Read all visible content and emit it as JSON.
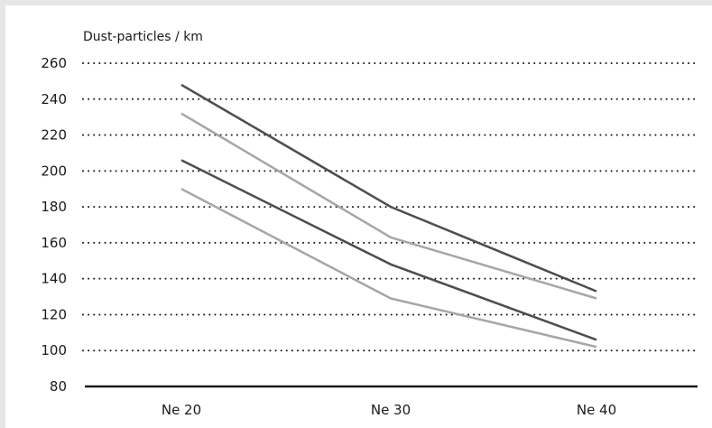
{
  "chart_data": {
    "type": "line",
    "title": "",
    "xlabel": "",
    "ylabel": "Dust-particles / km",
    "categories": [
      "Ne 20",
      "Ne 30",
      "Ne 40"
    ],
    "ylim": [
      80,
      260
    ],
    "yticks": [
      80,
      100,
      120,
      140,
      160,
      180,
      200,
      220,
      240,
      260
    ],
    "grid": "dotted horizontal",
    "legend": "none",
    "series": [
      {
        "values": [
          248,
          180,
          133
        ],
        "color": "#4d4d4d"
      },
      {
        "values": [
          232,
          163,
          129
        ],
        "color": "#a6a6a6"
      },
      {
        "values": [
          206,
          148,
          106
        ],
        "color": "#4d4d4d"
      },
      {
        "values": [
          190,
          129,
          102
        ],
        "color": "#a6a6a6"
      }
    ]
  }
}
